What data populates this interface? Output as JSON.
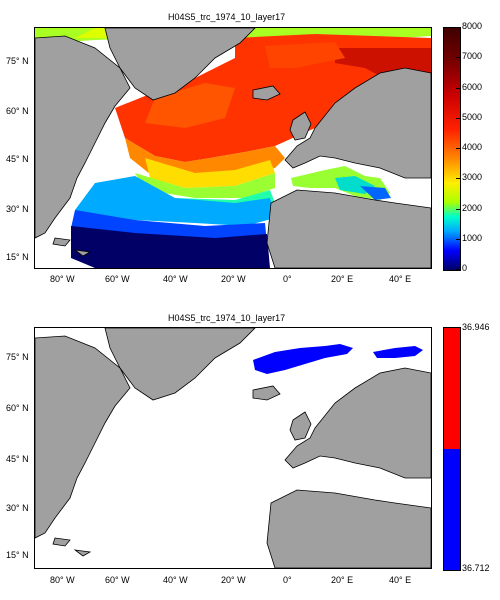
{
  "top": {
    "title": "H04S5_trc_1974_10_layer17",
    "colorbar_ticks": [
      "8000",
      "7000",
      "6000",
      "5000",
      "4000",
      "3000",
      "2000",
      "1000",
      "0"
    ],
    "colorbar_max": 8000,
    "colorbar_min": 0,
    "colormap": [
      "#000066",
      "#0000ff",
      "#00aaff",
      "#00ffcc",
      "#aaff00",
      "#ffee00",
      "#ff8800",
      "#ff2200",
      "#cc0000",
      "#6e0000",
      "#400000"
    ]
  },
  "bottom": {
    "title": "H04S5_trc_1974_10_layer17",
    "colorbar_max_label": "36.946",
    "colorbar_min_label": "36.712",
    "colors": {
      "high": "#ff0000",
      "low": "#0000ff"
    }
  },
  "axes": {
    "lat_labels": [
      "75° N",
      "60° N",
      "45° N",
      "30° N",
      "15° N"
    ],
    "lon_labels": [
      "80° W",
      "60° W",
      "40° W",
      "20° W",
      "0°",
      "20° E",
      "40° E"
    ]
  },
  "land_color": "#a0a0a0"
}
